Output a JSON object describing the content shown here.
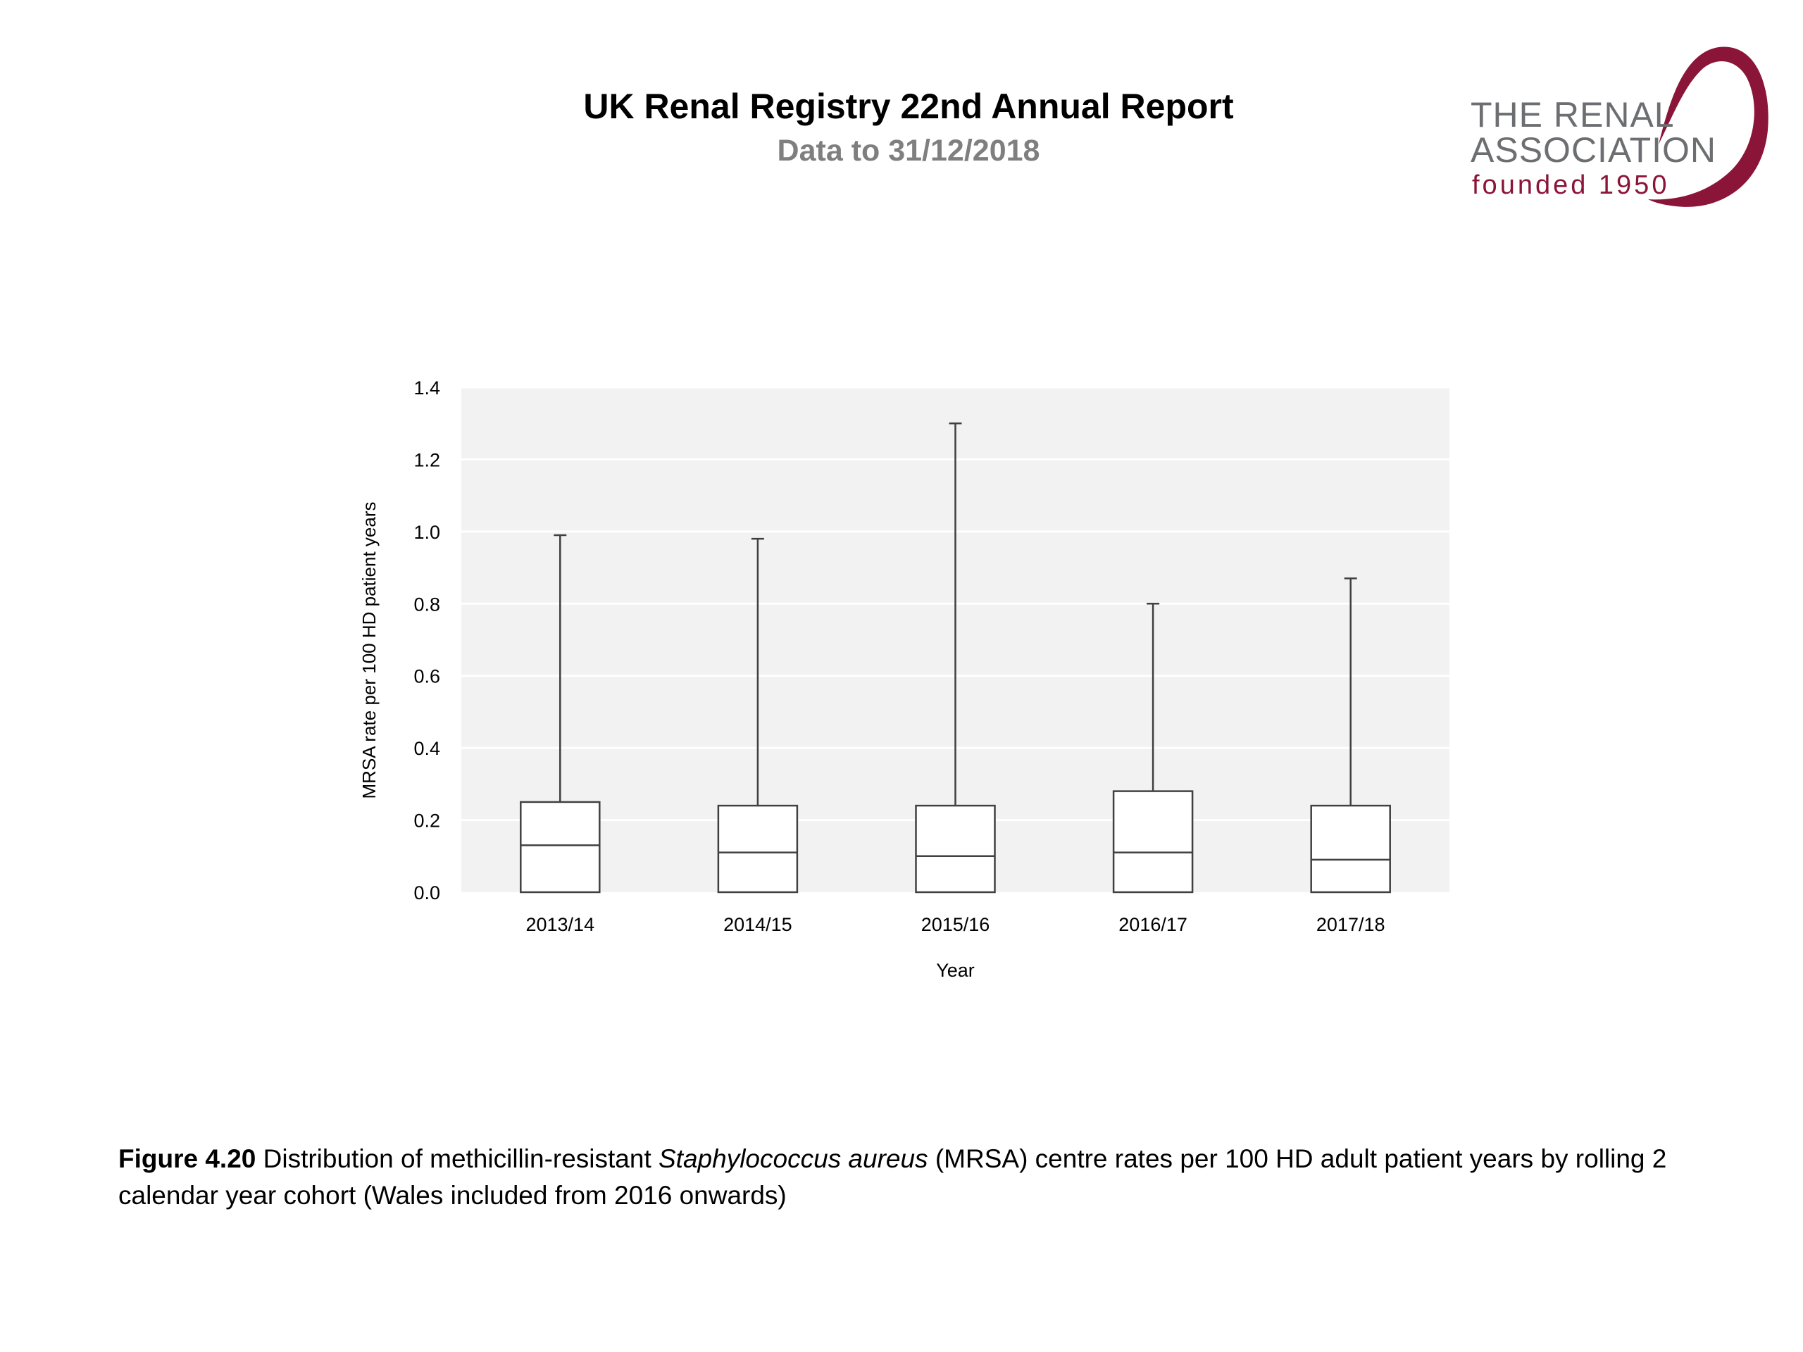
{
  "header": {
    "title": "UK Renal Registry 22nd Annual Report",
    "subtitle": "Data to 31/12/2018"
  },
  "logo": {
    "line1": "THE RENAL",
    "line2": "ASSOCIATION",
    "line3": "founded 1950",
    "color_text": "#6d6e71",
    "color_accent": "#8b1538"
  },
  "chart_data": {
    "type": "box",
    "categories": [
      "2013/14",
      "2014/15",
      "2015/16",
      "2016/17",
      "2017/18"
    ],
    "boxes": [
      {
        "min": 0.0,
        "median": 0.13,
        "q3": 0.25,
        "max": 0.99
      },
      {
        "min": 0.0,
        "median": 0.11,
        "q3": 0.24,
        "max": 0.98
      },
      {
        "min": 0.0,
        "median": 0.1,
        "q3": 0.24,
        "max": 1.3
      },
      {
        "min": 0.0,
        "median": 0.11,
        "q3": 0.28,
        "max": 0.8
      },
      {
        "min": 0.0,
        "median": 0.09,
        "q3": 0.24,
        "max": 0.87
      }
    ],
    "xlabel": "Year",
    "ylabel": "MRSA rate per 100 HD patient years",
    "ylim": [
      0,
      1.4
    ],
    "yticks": [
      "0.0",
      "0.2",
      "0.4",
      "0.6",
      "0.8",
      "1.0",
      "1.2",
      "1.4"
    ],
    "grid": true,
    "plot_background": "#f2f2f2",
    "gridline_color": "#ffffff",
    "box_fill": "#ffffff",
    "line_color": "#404040"
  },
  "caption": {
    "label": "Figure 4.20",
    "text_before": " Distribution of methicillin-resistant ",
    "italic": "Staphylococcus aureus",
    "text_after": " (MRSA) centre rates per 100 HD adult patient years by rolling 2 calendar year cohort (Wales included from 2016 onwards)"
  }
}
